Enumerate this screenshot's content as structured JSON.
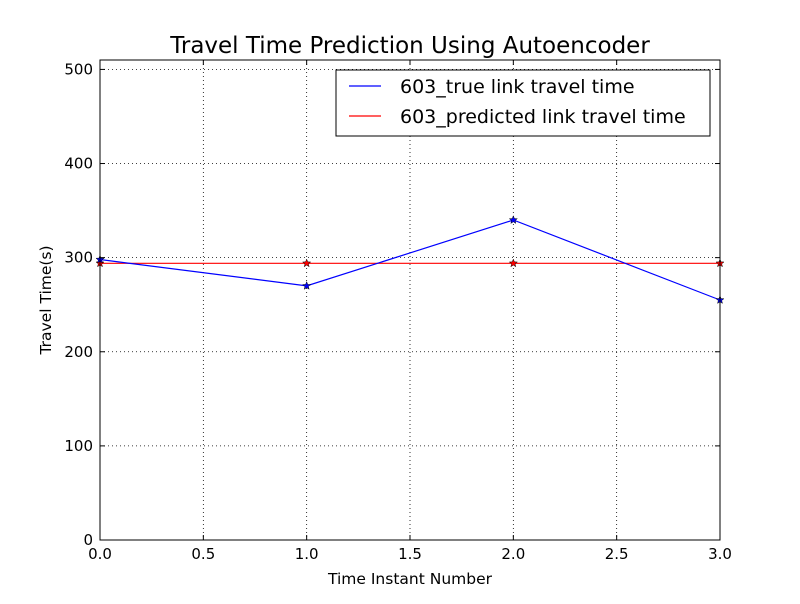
{
  "chart_data": {
    "type": "line",
    "title": "Travel Time Prediction Using Autoencoder",
    "xlabel": "Time Instant Number",
    "ylabel": "Travel Time(s)",
    "xlim": [
      0,
      3
    ],
    "ylim": [
      0,
      510
    ],
    "grid": true,
    "legend_position": "top-right",
    "x_ticks": [
      "0.0",
      "0.5",
      "1.0",
      "1.5",
      "2.0",
      "2.5",
      "3.0"
    ],
    "y_ticks": [
      "0",
      "100",
      "200",
      "300",
      "400",
      "500"
    ],
    "x_tick_values": [
      0,
      0.5,
      1,
      1.5,
      2,
      2.5,
      3
    ],
    "y_tick_values": [
      0,
      100,
      200,
      300,
      400,
      500
    ],
    "x": [
      0,
      1,
      2,
      3
    ],
    "series": [
      {
        "name": "603_true link travel time",
        "color": "#0000ff",
        "marker": "star",
        "values": [
          298,
          270,
          340,
          255
        ]
      },
      {
        "name": "603_predicted link travel time",
        "color": "#ff0000",
        "marker": "star",
        "values": [
          294,
          294,
          294,
          294
        ]
      }
    ]
  }
}
